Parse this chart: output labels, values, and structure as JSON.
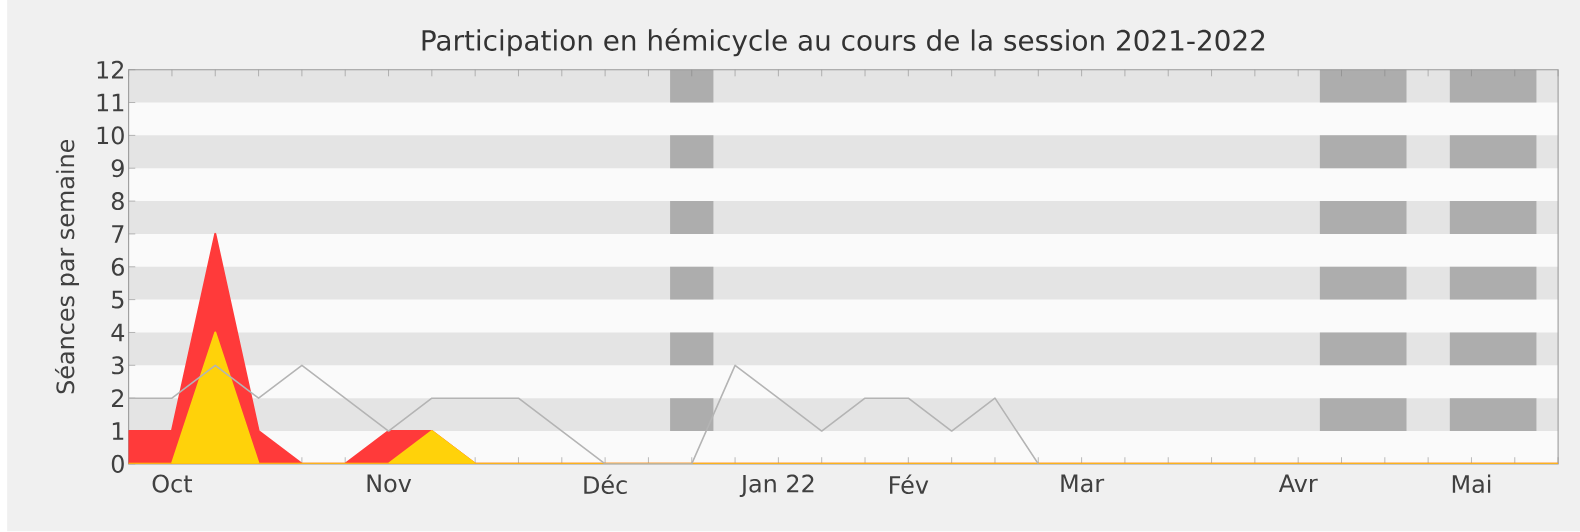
{
  "chart_data": {
    "type": "area",
    "title": "Participation en hémicycle au cours de la session 2021-2022",
    "ylabel": "Séances par semaine",
    "categories": [
      null,
      "Oct",
      null,
      null,
      null,
      null,
      "Nov",
      null,
      null,
      null,
      null,
      "Déc",
      null,
      null,
      null,
      "Jan 22",
      null,
      null,
      "Fév",
      null,
      null,
      null,
      "Mar",
      null,
      null,
      null,
      null,
      "Avr",
      null,
      null,
      null,
      "Mai",
      null,
      null
    ],
    "series": [
      {
        "color": "#ff3a3a",
        "values": [
          1,
          1,
          7,
          1,
          0,
          0,
          1,
          1,
          0,
          0,
          0,
          0,
          0,
          0,
          0,
          0,
          0,
          0,
          0,
          0,
          0,
          0,
          0,
          0,
          0,
          0,
          0,
          0,
          0,
          0,
          0,
          0,
          0,
          0
        ]
      },
      {
        "color": "#ffd20a",
        "values": [
          0,
          0,
          4,
          0,
          0,
          0,
          0,
          1,
          0,
          0,
          0,
          0,
          0,
          0,
          0,
          0,
          0,
          0,
          0,
          0,
          0,
          0,
          0,
          0,
          0,
          0,
          0,
          0,
          0,
          0,
          0,
          0,
          0,
          0
        ]
      },
      {
        "type": "line",
        "color": "#b4b4b4",
        "values": [
          2,
          2,
          3,
          2,
          3,
          2,
          1,
          2,
          2,
          2,
          1,
          0,
          0,
          0,
          3,
          2,
          1,
          2,
          2,
          1,
          2,
          0,
          null,
          null,
          null,
          null,
          null,
          null,
          null,
          null,
          null,
          null,
          null,
          null
        ]
      }
    ],
    "ylim": [
      0,
      12
    ],
    "yticks": [
      0,
      1,
      2,
      3,
      4,
      5,
      6,
      7,
      8,
      9,
      10,
      11,
      12
    ]
  }
}
